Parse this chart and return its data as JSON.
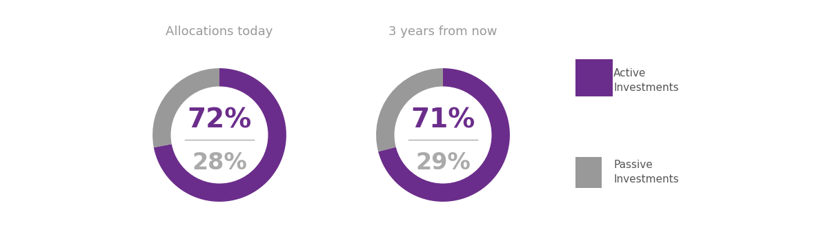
{
  "charts": [
    {
      "title": "Allocations today",
      "active_pct": 72,
      "passive_pct": 28
    },
    {
      "title": "3 years from now",
      "active_pct": 71,
      "passive_pct": 29
    }
  ],
  "active_color": "#6B2D8B",
  "passive_color": "#999999",
  "white_color": "#ffffff",
  "active_label_top": "Active",
  "active_label_bot": "Investments",
  "passive_label_top": "Passive",
  "passive_label_bot": "Investments",
  "background_color": "#ffffff",
  "title_color": "#999999",
  "active_text_color": "#6B2D8B",
  "passive_text_color": "#aaaaaa",
  "line_color": "#aaaaaa",
  "legend_color": "#555555"
}
